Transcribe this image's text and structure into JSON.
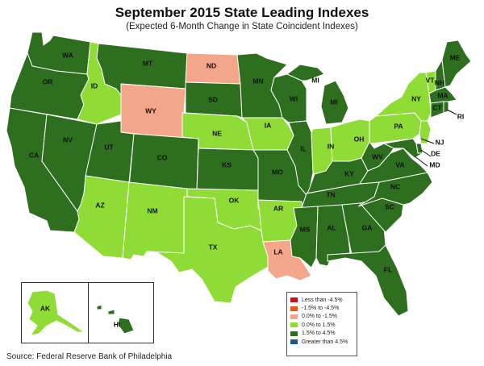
{
  "title": "September 2015 State Leading Indexes",
  "subtitle": "(Expected 6-Month Change in State Coincident Indexes)",
  "source": "Source: Federal Reserve Bank of Philadelphia",
  "colors": {
    "dark_green": "#2e6e1f",
    "light_green": "#8fdc36",
    "salmon": "#f4a68b",
    "orange": "#e8581a",
    "red": "#c0141b",
    "blue": "#1f5a7a"
  },
  "legend": {
    "items": [
      {
        "label": "Less than -4.5%",
        "color": "#c0141b"
      },
      {
        "label": "-1.5% to -4.5%",
        "color": "#e8581a"
      },
      {
        "label": "0.0% to -1.5%",
        "color": "#f4a68b"
      },
      {
        "label": "0.0% to  1.5%",
        "color": "#8fdc36"
      },
      {
        "label": "1.5% to  4.5%",
        "color": "#2e6e1f"
      },
      {
        "label": "Greater than 4.5%",
        "color": "#1f5a7a"
      }
    ]
  },
  "states": {
    "WA": {
      "label": "WA",
      "category": "1.5% to  4.5%"
    },
    "OR": {
      "label": "OR",
      "category": "1.5% to  4.5%"
    },
    "CA": {
      "label": "CA",
      "category": "1.5% to  4.5%"
    },
    "NV": {
      "label": "NV",
      "category": "1.5% to  4.5%"
    },
    "ID": {
      "label": "ID",
      "category": "0.0% to  1.5%"
    },
    "MT": {
      "label": "MT",
      "category": "1.5% to  4.5%"
    },
    "WY": {
      "label": "WY",
      "category": "0.0% to -1.5%"
    },
    "UT": {
      "label": "UT",
      "category": "1.5% to  4.5%"
    },
    "CO": {
      "label": "CO",
      "category": "1.5% to  4.5%"
    },
    "AZ": {
      "label": "AZ",
      "category": "0.0% to  1.5%"
    },
    "NM": {
      "label": "NM",
      "category": "0.0% to  1.5%"
    },
    "ND": {
      "label": "ND",
      "category": "0.0% to -1.5%"
    },
    "SD": {
      "label": "SD",
      "category": "1.5% to  4.5%"
    },
    "NE": {
      "label": "NE",
      "category": "0.0% to  1.5%"
    },
    "KS": {
      "label": "KS",
      "category": "1.5% to  4.5%"
    },
    "OK": {
      "label": "OK",
      "category": "0.0% to  1.5%"
    },
    "TX": {
      "label": "TX",
      "category": "0.0% to  1.5%"
    },
    "MN": {
      "label": "MN",
      "category": "1.5% to  4.5%"
    },
    "IA": {
      "label": "IA",
      "category": "0.0% to  1.5%"
    },
    "MO": {
      "label": "MO",
      "category": "1.5% to  4.5%"
    },
    "AR": {
      "label": "AR",
      "category": "0.0% to  1.5%"
    },
    "LA": {
      "label": "LA",
      "category": "0.0% to -1.5%"
    },
    "WI": {
      "label": "WI",
      "category": "1.5% to  4.5%"
    },
    "IL": {
      "label": "IL",
      "category": "1.5% to  4.5%"
    },
    "MI": {
      "label": "MI",
      "category": "1.5% to  4.5%"
    },
    "IN": {
      "label": "IN",
      "category": "0.0% to  1.5%"
    },
    "OH": {
      "label": "OH",
      "category": "0.0% to  1.5%"
    },
    "KY": {
      "label": "KY",
      "category": "1.5% to  4.5%"
    },
    "TN": {
      "label": "TN",
      "category": "1.5% to  4.5%"
    },
    "MS": {
      "label": "MS",
      "category": "1.5% to  4.5%"
    },
    "AL": {
      "label": "AL",
      "category": "1.5% to  4.5%"
    },
    "GA": {
      "label": "GA",
      "category": "1.5% to  4.5%"
    },
    "FL": {
      "label": "FL",
      "category": "1.5% to  4.5%"
    },
    "SC": {
      "label": "SC",
      "category": "1.5% to  4.5%"
    },
    "NC": {
      "label": "NC",
      "category": "1.5% to  4.5%"
    },
    "VA": {
      "label": "VA",
      "category": "1.5% to  4.5%"
    },
    "WV": {
      "label": "WV",
      "category": "1.5% to  4.5%"
    },
    "PA": {
      "label": "PA",
      "category": "0.0% to  1.5%"
    },
    "NY": {
      "label": "NY",
      "category": "0.0% to  1.5%"
    },
    "NJ": {
      "label": "NJ",
      "category": "0.0% to  1.5%"
    },
    "DE": {
      "label": "DE",
      "category": "1.5% to  4.5%"
    },
    "MD": {
      "label": "MD",
      "category": "1.5% to  4.5%"
    },
    "VT": {
      "label": "VT",
      "category": "0.0% to  1.5%"
    },
    "NH": {
      "label": "NH",
      "category": "1.5% to  4.5%"
    },
    "ME": {
      "label": "ME",
      "category": "1.5% to  4.5%"
    },
    "MA": {
      "label": "MA",
      "category": "1.5% to  4.5%"
    },
    "CT": {
      "label": "CT",
      "category": "1.5% to  4.5%"
    },
    "RI": {
      "label": "RI",
      "category": "1.5% to  4.5%"
    },
    "AK": {
      "label": "AK",
      "category": "0.0% to  1.5%"
    },
    "HI": {
      "label": "HI",
      "category": "1.5% to  4.5%"
    }
  }
}
